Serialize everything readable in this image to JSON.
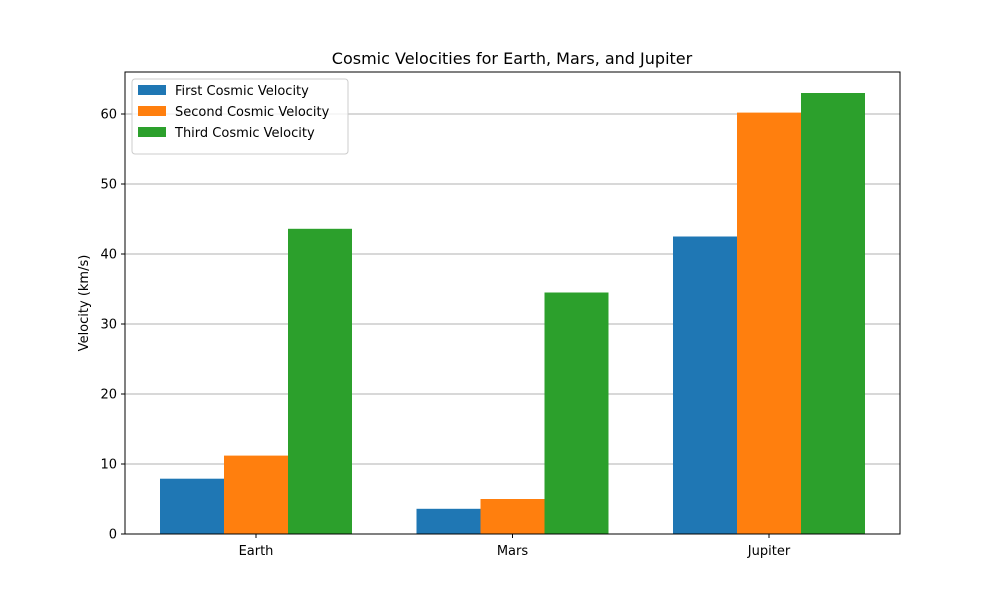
{
  "chart_data": {
    "type": "bar",
    "title": "Cosmic Velocities for Earth, Mars, and Jupiter",
    "xlabel": "",
    "ylabel": "Velocity (km/s)",
    "categories": [
      "Earth",
      "Mars",
      "Jupiter"
    ],
    "series": [
      {
        "name": "First Cosmic Velocity",
        "color": "#1f77b4",
        "values": [
          7.9,
          3.6,
          42.5
        ]
      },
      {
        "name": "Second Cosmic Velocity",
        "color": "#ff7f0e",
        "values": [
          11.2,
          5.0,
          60.2
        ]
      },
      {
        "name": "Third Cosmic Velocity",
        "color": "#2ca02c",
        "values": [
          43.6,
          34.5,
          63.0
        ]
      }
    ],
    "ylim": [
      0,
      66
    ],
    "yticks": [
      0,
      10,
      20,
      30,
      40,
      50,
      60
    ],
    "grid": "y",
    "legend_position": "top-left"
  }
}
